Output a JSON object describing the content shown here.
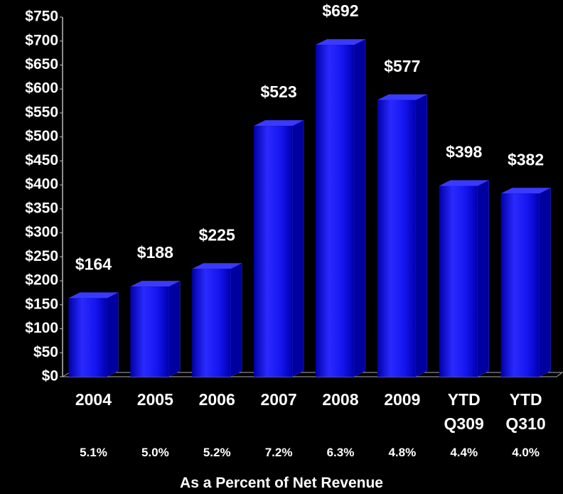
{
  "chart_data": {
    "type": "bar",
    "categories": [
      "2004",
      "2005",
      "2006",
      "2007",
      "2008",
      "2009",
      "YTD Q309",
      "YTD Q310"
    ],
    "values": [
      164,
      188,
      225,
      523,
      692,
      577,
      398,
      382
    ],
    "value_labels": [
      "$164",
      "$188",
      "$225",
      "$523",
      "$692",
      "$577",
      "$398",
      "$382"
    ],
    "color": "#1010f0",
    "ylim": [
      0,
      750
    ],
    "yticks": [
      {
        "value": 0,
        "label": "$0"
      },
      {
        "value": 50,
        "label": "$50"
      },
      {
        "value": 100,
        "label": "$100"
      },
      {
        "value": 150,
        "label": "$150"
      },
      {
        "value": 200,
        "label": "$200"
      },
      {
        "value": 250,
        "label": "$250"
      },
      {
        "value": 300,
        "label": "$300"
      },
      {
        "value": 350,
        "label": "$350"
      },
      {
        "value": 400,
        "label": "$400"
      },
      {
        "value": 450,
        "label": "$450"
      },
      {
        "value": 500,
        "label": "$500"
      },
      {
        "value": 550,
        "label": "$550"
      },
      {
        "value": 600,
        "label": "$600"
      },
      {
        "value": 650,
        "label": "$650"
      },
      {
        "value": 700,
        "label": "$700"
      },
      {
        "value": 750,
        "label": "$750"
      }
    ],
    "percent_labels": [
      "5.1%",
      "5.0%",
      "5.2%",
      "7.2%",
      "6.3%",
      "4.8%",
      "4.4%",
      "4.0%"
    ],
    "footnote": "As a Percent of Net Revenue"
  }
}
